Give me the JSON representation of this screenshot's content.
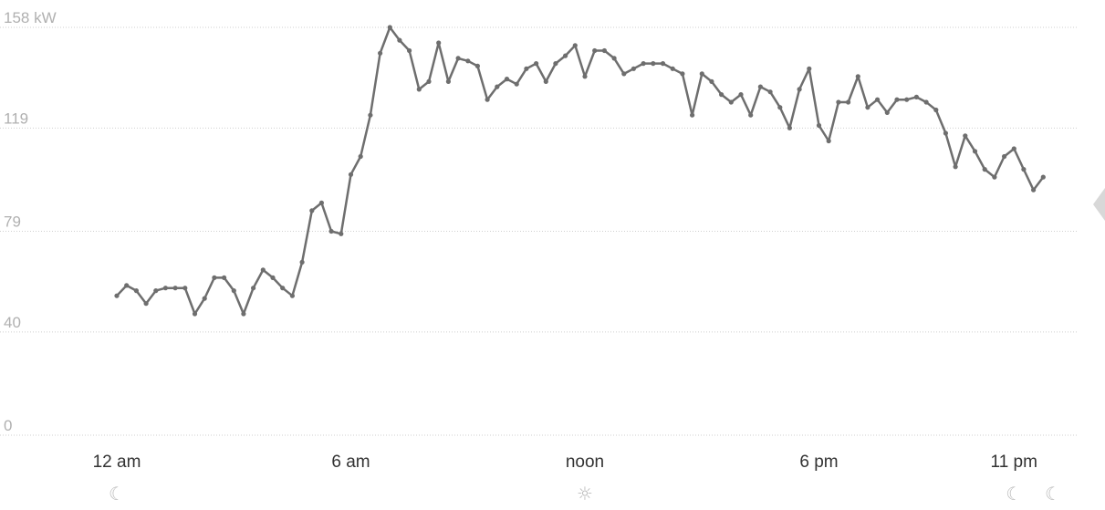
{
  "chart_data": {
    "type": "line",
    "unit": "kW",
    "ylim": [
      0,
      158
    ],
    "y_ticks": [
      {
        "value": 158,
        "label": "158 kW"
      },
      {
        "value": 119,
        "label": "119"
      },
      {
        "value": 79,
        "label": "79"
      },
      {
        "value": 40,
        "label": "40"
      },
      {
        "value": 0,
        "label": "0"
      }
    ],
    "xlim": [
      0,
      24
    ],
    "x_ticks": [
      {
        "hour": 0,
        "label": "12 am"
      },
      {
        "hour": 6,
        "label": "6 am"
      },
      {
        "hour": 12,
        "label": "noon"
      },
      {
        "hour": 18,
        "label": "6 pm"
      },
      {
        "hour": 23,
        "label": "11 pm"
      }
    ],
    "grid": true,
    "series": [
      {
        "values": [
          [
            0.0,
            54
          ],
          [
            0.25,
            58
          ],
          [
            0.5,
            56
          ],
          [
            0.75,
            51
          ],
          [
            1.0,
            56
          ],
          [
            1.25,
            57
          ],
          [
            1.5,
            57
          ],
          [
            1.75,
            57
          ],
          [
            2.0,
            47
          ],
          [
            2.25,
            53
          ],
          [
            2.5,
            61
          ],
          [
            2.75,
            61
          ],
          [
            3.0,
            56
          ],
          [
            3.25,
            47
          ],
          [
            3.5,
            57
          ],
          [
            3.75,
            64
          ],
          [
            4.0,
            61
          ],
          [
            4.25,
            57
          ],
          [
            4.5,
            54
          ],
          [
            4.75,
            67
          ],
          [
            5.0,
            87
          ],
          [
            5.25,
            90
          ],
          [
            5.5,
            79
          ],
          [
            5.75,
            78
          ],
          [
            6.0,
            101
          ],
          [
            6.25,
            108
          ],
          [
            6.5,
            124
          ],
          [
            6.75,
            148
          ],
          [
            7.0,
            158
          ],
          [
            7.25,
            153
          ],
          [
            7.5,
            149
          ],
          [
            7.75,
            134
          ],
          [
            8.0,
            137
          ],
          [
            8.25,
            152
          ],
          [
            8.5,
            137
          ],
          [
            8.75,
            146
          ],
          [
            9.0,
            145
          ],
          [
            9.25,
            143
          ],
          [
            9.5,
            130
          ],
          [
            9.75,
            135
          ],
          [
            10.0,
            138
          ],
          [
            10.25,
            136
          ],
          [
            10.5,
            142
          ],
          [
            10.75,
            144
          ],
          [
            11.0,
            137
          ],
          [
            11.25,
            144
          ],
          [
            11.5,
            147
          ],
          [
            11.75,
            151
          ],
          [
            12.0,
            139
          ],
          [
            12.25,
            149
          ],
          [
            12.5,
            149
          ],
          [
            12.75,
            146
          ],
          [
            13.0,
            140
          ],
          [
            13.25,
            142
          ],
          [
            13.5,
            144
          ],
          [
            13.75,
            144
          ],
          [
            14.0,
            144
          ],
          [
            14.25,
            142
          ],
          [
            14.5,
            140
          ],
          [
            14.75,
            124
          ],
          [
            15.0,
            140
          ],
          [
            15.25,
            137
          ],
          [
            15.5,
            132
          ],
          [
            15.75,
            129
          ],
          [
            16.0,
            132
          ],
          [
            16.25,
            124
          ],
          [
            16.5,
            135
          ],
          [
            16.75,
            133
          ],
          [
            17.0,
            127
          ],
          [
            17.25,
            119
          ],
          [
            17.5,
            134
          ],
          [
            17.75,
            142
          ],
          [
            18.0,
            120
          ],
          [
            18.25,
            114
          ],
          [
            18.5,
            129
          ],
          [
            18.75,
            129
          ],
          [
            19.0,
            139
          ],
          [
            19.25,
            127
          ],
          [
            19.5,
            130
          ],
          [
            19.75,
            125
          ],
          [
            20.0,
            130
          ],
          [
            20.25,
            130
          ],
          [
            20.5,
            131
          ],
          [
            20.75,
            129
          ],
          [
            21.0,
            126
          ],
          [
            21.25,
            117
          ],
          [
            21.5,
            104
          ],
          [
            21.75,
            116
          ],
          [
            22.0,
            110
          ],
          [
            22.25,
            103
          ],
          [
            22.5,
            100
          ],
          [
            22.75,
            108
          ],
          [
            23.0,
            111
          ],
          [
            23.25,
            103
          ],
          [
            23.5,
            95
          ],
          [
            23.75,
            100
          ]
        ]
      }
    ],
    "x_icons": [
      {
        "hour": 0,
        "icon": "moon-icon",
        "glyph": "☾"
      },
      {
        "hour": 12,
        "icon": "sun-icon",
        "glyph": "☼"
      },
      {
        "hour": 23,
        "icon": "moon-icon",
        "glyph": "☾"
      },
      {
        "hour": 24,
        "icon": "moon-icon",
        "glyph": "☾"
      }
    ],
    "colors": {
      "line": "#6e6e6e",
      "grid": "#cfcfcf",
      "y_tick": "#b0b0b0",
      "x_tick": "#333333"
    }
  },
  "nav": {
    "next_icon": "chevron-right-icon"
  }
}
